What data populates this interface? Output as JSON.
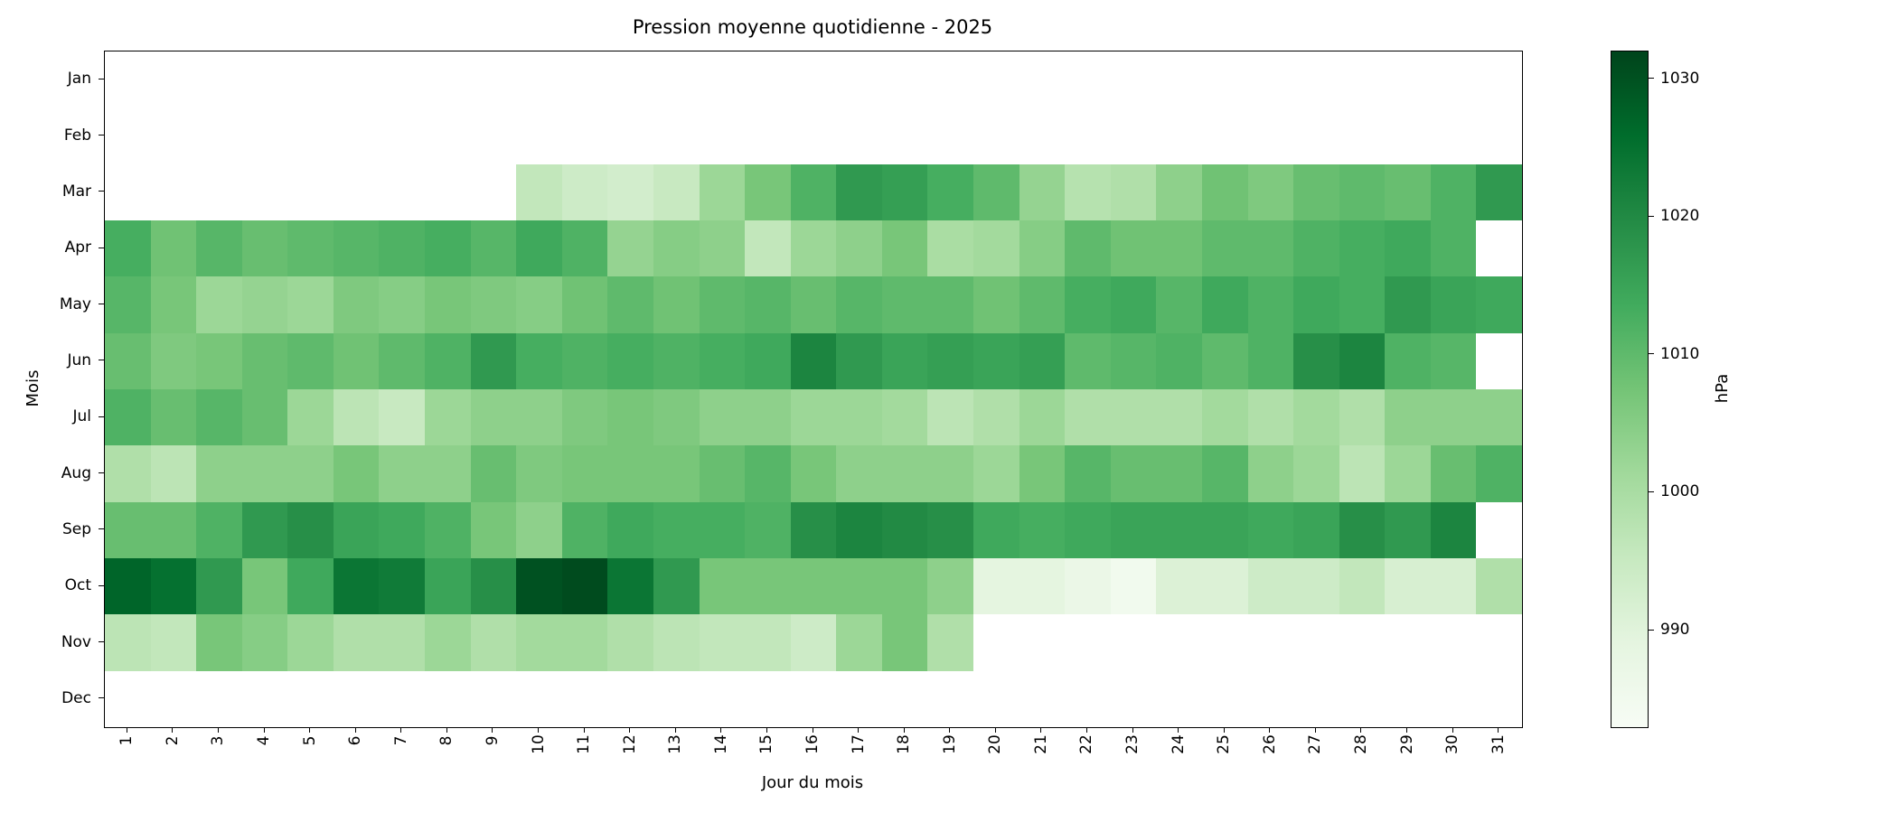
{
  "chart_data": {
    "type": "heatmap",
    "title": "Pression moyenne quotidienne - 2025",
    "xlabel": "Jour du mois",
    "ylabel": "Mois",
    "colorbar_label": "hPa",
    "colormap": "Greens",
    "vmin": 983,
    "vmax": 1032,
    "colorbar_ticks": [
      1030,
      1020,
      1010,
      1000,
      990
    ],
    "missing_color": "#ffffff",
    "colormap_stops": [
      "#f7fcf5",
      "#e5f5e0",
      "#c7e9c0",
      "#a1d99b",
      "#74c476",
      "#41ab5d",
      "#238b45",
      "#006d2c",
      "#00441b"
    ],
    "x_ticklabels": [
      "1",
      "2",
      "3",
      "4",
      "5",
      "6",
      "7",
      "8",
      "9",
      "10",
      "11",
      "12",
      "13",
      "14",
      "15",
      "16",
      "17",
      "18",
      "19",
      "20",
      "21",
      "22",
      "23",
      "24",
      "25",
      "26",
      "27",
      "28",
      "29",
      "30",
      "31"
    ],
    "y_ticklabels": [
      "Jan",
      "Feb",
      "Mar",
      "Apr",
      "May",
      "Jun",
      "Jul",
      "Aug",
      "Sep",
      "Oct",
      "Nov",
      "Dec"
    ],
    "values": [
      [
        null,
        null,
        null,
        null,
        null,
        null,
        null,
        null,
        null,
        null,
        null,
        null,
        null,
        null,
        null,
        null,
        null,
        null,
        null,
        null,
        null,
        null,
        null,
        null,
        null,
        null,
        null,
        null,
        null,
        null,
        null
      ],
      [
        null,
        null,
        null,
        null,
        null,
        null,
        null,
        null,
        null,
        null,
        null,
        null,
        null,
        null,
        null,
        null,
        null,
        null,
        null,
        null,
        null,
        null,
        null,
        null,
        null,
        null,
        null,
        null,
        null,
        null,
        null
      ],
      [
        null,
        null,
        null,
        null,
        null,
        null,
        null,
        null,
        null,
        996,
        994,
        993,
        995,
        1002,
        1007,
        1012,
        1017,
        1016,
        1013,
        1010,
        1003,
        998,
        999,
        1004,
        1008,
        1006,
        1009,
        1010,
        1009,
        1012,
        1017
      ],
      [
        1013,
        1008,
        1011,
        1009,
        1010,
        1011,
        1012,
        1013,
        1011,
        1014,
        1012,
        1003,
        1005,
        1004,
        996,
        1002,
        1004,
        1007,
        1000,
        1001,
        1005,
        1010,
        1008,
        1008,
        1010,
        1010,
        1012,
        1013,
        1014,
        1012,
        null
      ],
      [
        1011,
        1007,
        1002,
        1003,
        1002,
        1006,
        1005,
        1007,
        1006,
        1005,
        1008,
        1010,
        1008,
        1010,
        1011,
        1009,
        1011,
        1010,
        1010,
        1008,
        1010,
        1013,
        1014,
        1011,
        1014,
        1012,
        1014,
        1013,
        1017,
        1015,
        1014
      ],
      [
        1009,
        1006,
        1007,
        1009,
        1010,
        1008,
        1010,
        1012,
        1017,
        1013,
        1012,
        1013,
        1012,
        1013,
        1014,
        1021,
        1017,
        1015,
        1016,
        1015,
        1016,
        1010,
        1011,
        1012,
        1010,
        1012,
        1019,
        1021,
        1012,
        1011,
        null
      ],
      [
        1012,
        1009,
        1011,
        1009,
        1002,
        997,
        995,
        1002,
        1004,
        1004,
        1006,
        1007,
        1006,
        1004,
        1004,
        1002,
        1002,
        1001,
        997,
        999,
        1002,
        999,
        999,
        999,
        1001,
        999,
        1001,
        999,
        1004,
        1004,
        1004
      ],
      [
        999,
        997,
        1004,
        1004,
        1004,
        1007,
        1004,
        1004,
        1009,
        1006,
        1007,
        1007,
        1007,
        1009,
        1011,
        1007,
        1004,
        1004,
        1004,
        1002,
        1007,
        1011,
        1009,
        1009,
        1011,
        1004,
        1002,
        997,
        1002,
        1009,
        1012
      ],
      [
        1009,
        1009,
        1012,
        1017,
        1019,
        1015,
        1014,
        1012,
        1007,
        1004,
        1012,
        1014,
        1013,
        1013,
        1012,
        1019,
        1021,
        1020,
        1019,
        1014,
        1013,
        1014,
        1015,
        1015,
        1015,
        1014,
        1015,
        1019,
        1017,
        1021,
        null
      ],
      [
        1027,
        1025,
        1017,
        1007,
        1014,
        1024,
        1023,
        1015,
        1019,
        1030,
        1031,
        1024,
        1017,
        1007,
        1007,
        1007,
        1007,
        1007,
        1004,
        989,
        989,
        987,
        985,
        991,
        991,
        994,
        994,
        996,
        992,
        992,
        999
      ],
      [
        997,
        996,
        1007,
        1005,
        1002,
        999,
        999,
        1002,
        999,
        1001,
        1001,
        999,
        997,
        996,
        996,
        994,
        1002,
        1007,
        999,
        null,
        null,
        null,
        null,
        null,
        null,
        null,
        null,
        null,
        null,
        null,
        null
      ],
      [
        null,
        null,
        null,
        null,
        null,
        null,
        null,
        null,
        null,
        null,
        null,
        null,
        null,
        null,
        null,
        null,
        null,
        null,
        null,
        null,
        null,
        null,
        null,
        null,
        null,
        null,
        null,
        null,
        null,
        null,
        null
      ]
    ]
  }
}
